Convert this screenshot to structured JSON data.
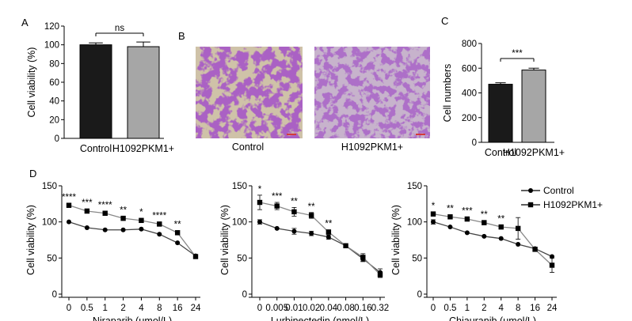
{
  "panels": {
    "A": {
      "letter": "A"
    },
    "B": {
      "letter": "B",
      "image_labels": [
        "Control",
        "H1092PKM1+"
      ]
    },
    "C": {
      "letter": "C"
    },
    "D": {
      "letter": "D"
    }
  },
  "colors": {
    "control": "#1a1a1a",
    "pkm1": "#a6a6a6",
    "line": "#000000",
    "stain_dark": "#6e2b8f",
    "stain_light": "#c9b7cf",
    "scale_bar": "#d43a3a"
  },
  "chart_data": [
    {
      "id": "A",
      "type": "bar",
      "categories": [
        "Control",
        "H1092PKM1+"
      ],
      "values": [
        100,
        98
      ],
      "errors": [
        2,
        5
      ],
      "ylabel": "Cell viability (%)",
      "ylim": [
        0,
        120
      ],
      "yticks": [
        "0",
        "20",
        "40",
        "60",
        "80",
        "100",
        "120"
      ],
      "significance": "ns"
    },
    {
      "id": "C",
      "type": "bar",
      "categories": [
        "Control",
        "H1092PKM1+"
      ],
      "values": [
        470,
        585
      ],
      "errors": [
        12,
        15
      ],
      "ylabel": "Cell numbers",
      "ylim": [
        0,
        800
      ],
      "yticks": [
        "0",
        "200",
        "400",
        "600",
        "800"
      ],
      "significance": "***"
    },
    {
      "id": "D1",
      "type": "line",
      "xlabel": "Niraparib (μmol/L)",
      "ylabel": "Cell viability (%)",
      "x": [
        "0",
        "0.5",
        "1",
        "2",
        "4",
        "8",
        "16",
        "24"
      ],
      "ylim": [
        0,
        150
      ],
      "yticks": [
        "0",
        "50",
        "100",
        "150"
      ],
      "series": [
        {
          "name": "Control",
          "marker": "circle",
          "values": [
            100,
            92,
            89,
            89,
            90,
            83,
            71,
            53
          ],
          "errors": [
            2,
            2,
            2,
            2,
            2,
            2,
            2,
            2
          ]
        },
        {
          "name": "H1092PKM1+",
          "marker": "square",
          "values": [
            123,
            115,
            112,
            105,
            102,
            97,
            85,
            52
          ],
          "errors": [
            3,
            3,
            3,
            3,
            3,
            3,
            3,
            2
          ]
        }
      ],
      "significance": [
        "****",
        "***",
        "****",
        "**",
        "*",
        "****",
        "**",
        ""
      ]
    },
    {
      "id": "D2",
      "type": "line",
      "xlabel": "Lurbinectedin (nmol/L)",
      "ylabel": "Cell viability (%)",
      "x": [
        "0",
        "0.005",
        "0.01",
        "0.02",
        "0.04",
        "0.08",
        "0.16",
        "0.32"
      ],
      "ylim": [
        0,
        150
      ],
      "yticks": [
        "0",
        "50",
        "100",
        "150"
      ],
      "series": [
        {
          "name": "Control",
          "marker": "circle",
          "values": [
            100,
            91,
            87,
            84,
            79,
            67,
            49,
            30
          ],
          "errors": [
            3,
            2,
            4,
            3,
            3,
            2,
            4,
            5
          ]
        },
        {
          "name": "H1092PKM1+",
          "marker": "square",
          "values": [
            127,
            122,
            114,
            109,
            86,
            67,
            51,
            27
          ],
          "errors": [
            10,
            5,
            6,
            4,
            3,
            2,
            5,
            4
          ]
        }
      ],
      "significance": [
        "*",
        "***",
        "**",
        "**",
        "**",
        "",
        "",
        ""
      ]
    },
    {
      "id": "D3",
      "type": "line",
      "xlabel": "Chiauranib (μmol/L)",
      "ylabel": "Cell viability (%)",
      "x": [
        "0",
        "0.5",
        "1",
        "2",
        "4",
        "8",
        "16",
        "24"
      ],
      "ylim": [
        0,
        150
      ],
      "yticks": [
        "0",
        "50",
        "100",
        "150"
      ],
      "series": [
        {
          "name": "Control",
          "marker": "circle",
          "values": [
            100,
            93,
            85,
            80,
            77,
            69,
            63,
            52
          ],
          "errors": [
            3,
            2,
            2,
            2,
            2,
            2,
            2,
            2
          ]
        },
        {
          "name": "H1092PKM1+",
          "marker": "square",
          "values": [
            111,
            107,
            104,
            99,
            93,
            91,
            62,
            40
          ],
          "errors": [
            3,
            3,
            3,
            3,
            3,
            15,
            3,
            10
          ]
        }
      ],
      "significance": [
        "*",
        "**",
        "***",
        "**",
        "**",
        "",
        "",
        ""
      ],
      "legend": {
        "position": "top-right",
        "entries": [
          "Control",
          "H1092PKM1+"
        ]
      }
    }
  ]
}
